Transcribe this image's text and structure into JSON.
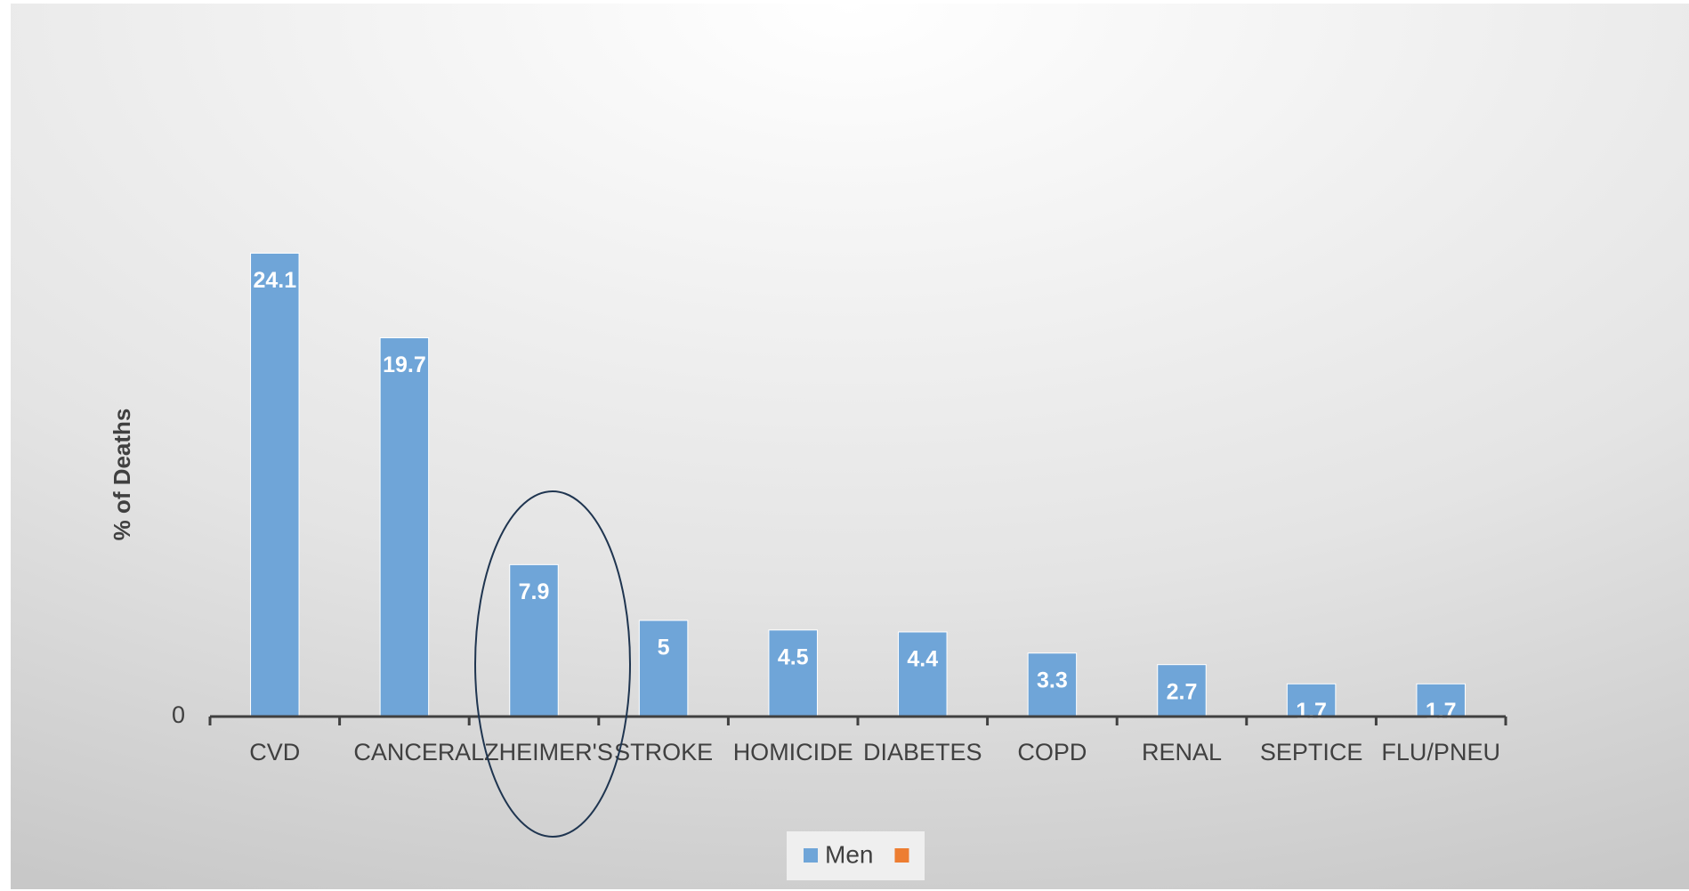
{
  "chart_data": {
    "type": "bar",
    "y_label": "% of Deaths",
    "categories": [
      "CVD",
      "CANCER",
      "ALZHEIMER'S",
      "STROKE",
      "HOMICIDE",
      "DIABETES",
      "COPD",
      "RENAL",
      "SEPTICE",
      "FLU/PNEU"
    ],
    "series": [
      {
        "name": "Men",
        "color": "#6fa5d8",
        "values": [
          24.1,
          19.7,
          7.9,
          5,
          4.5,
          4.4,
          3.3,
          2.7,
          1.7,
          1.7
        ]
      },
      {
        "color": "#ed7d31",
        "values": [
          null,
          null,
          null,
          null,
          null,
          null,
          null,
          null,
          null,
          null
        ]
      }
    ],
    "ylim": [
      0,
      30
    ],
    "yticks": [
      0
    ],
    "grid": false,
    "legend": "bottom"
  }
}
